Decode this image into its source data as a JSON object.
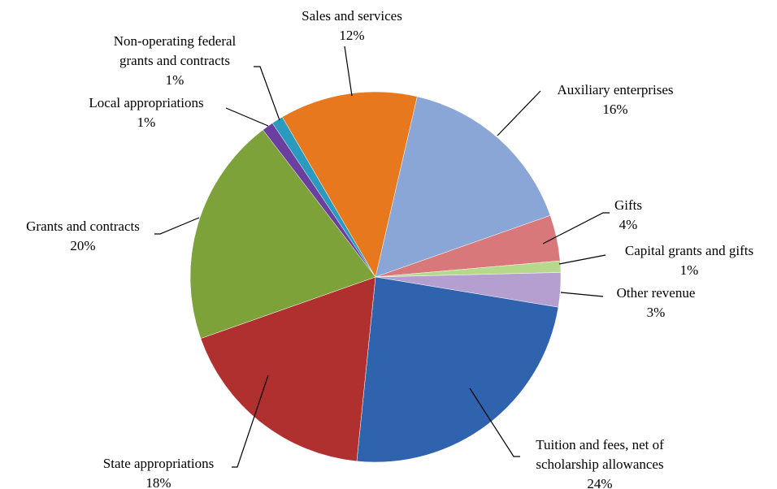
{
  "chart_data": {
    "type": "pie",
    "categories": [
      "Auxiliary enterprises",
      "Gifts",
      "Capital grants and gifts",
      "Other revenue",
      "Tuition and fees, net of\nscholarship allowances",
      "State appropriations",
      "Grants and contracts",
      "Local appropriations",
      "Non-operating federal\ngrants and contracts",
      "Sales and services"
    ],
    "values": [
      16,
      4,
      1,
      3,
      24,
      18,
      20,
      1,
      1,
      12
    ],
    "value_labels": [
      "16%",
      "4%",
      "1%",
      "3%",
      "24%",
      "18%",
      "20%",
      "1%",
      "1%",
      "12%"
    ],
    "colors": [
      "#8aa6d6",
      "#d9787a",
      "#b5d88a",
      "#b49fd0",
      "#2f63ad",
      "#b03030",
      "#7ea23a",
      "#6b3fa0",
      "#2a9bbf",
      "#e8781e"
    ]
  }
}
